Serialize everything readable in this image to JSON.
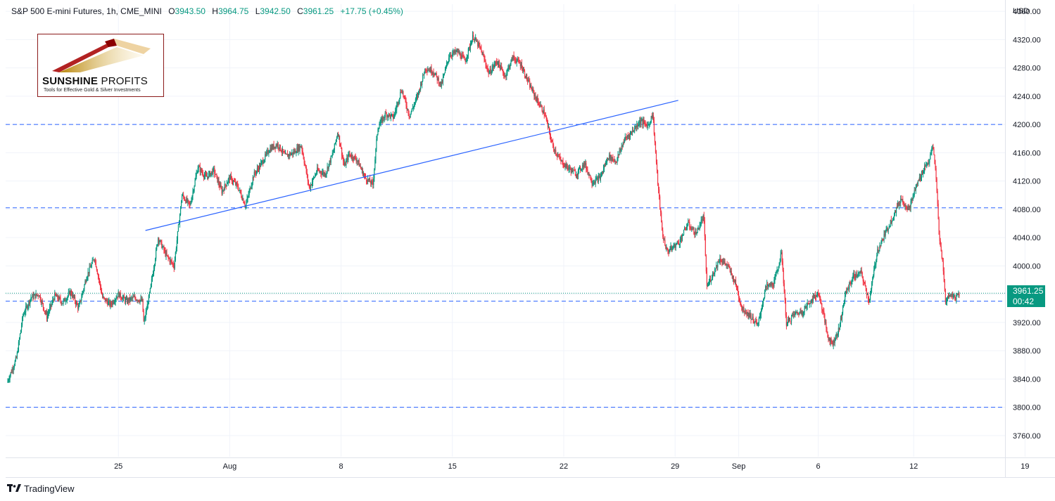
{
  "header": {
    "symbol": "S&P 500 E-mini Futures, 1h, CME_MINI",
    "open_label": "O",
    "open": "3943.50",
    "high_label": "H",
    "high": "3964.75",
    "low_label": "L",
    "low": "3942.50",
    "close_label": "C",
    "close": "3961.25",
    "change": "+17.75 (+0.45%)"
  },
  "axis": {
    "currency": "USD"
  },
  "price_badge": {
    "price": "3961.25",
    "countdown": "00:42"
  },
  "logo": {
    "name_bold": "SUNSHINE",
    "name_light": " PROFITS",
    "tagline": "Tools for Effective Gold & Silver Investments"
  },
  "footer": {
    "brand": "TradingView"
  },
  "colors": {
    "up": "#089981",
    "down": "#f23645",
    "level_line": "#2962ff",
    "trend_line": "#2962ff",
    "grid": "#f0f3fa"
  },
  "chart_data": {
    "type": "candlestick",
    "title": "S&P 500 E-mini Futures, 1h, CME_MINI",
    "ylabel": "USD",
    "ylim": [
      3730,
      4370
    ],
    "y_ticks": [
      3760,
      3800,
      3840,
      3880,
      3920,
      3960,
      4000,
      4040,
      4080,
      4120,
      4160,
      4200,
      4240,
      4280,
      4320,
      4360
    ],
    "x_ticks": [
      {
        "label": "25",
        "day": 7
      },
      {
        "label": "Aug",
        "day": 14
      },
      {
        "label": "8",
        "day": 21
      },
      {
        "label": "15",
        "day": 28
      },
      {
        "label": "22",
        "day": 35
      },
      {
        "label": "29",
        "day": 42
      },
      {
        "label": "Sep",
        "day": 46
      },
      {
        "label": "6",
        "day": 51
      },
      {
        "label": "12",
        "day": 57
      },
      {
        "label": "19",
        "day": 64
      }
    ],
    "x_unit": "trading-day index (0 = Jul 18)",
    "horizontal_levels": [
      4200,
      4082,
      3950,
      3800
    ],
    "trend_line": {
      "x1": 8.7,
      "y1": 4050,
      "x2": 42.2,
      "y2": 4234
    },
    "last_price": 3961.25,
    "price_path": [
      [
        0.0,
        3835
      ],
      [
        0.6,
        3870
      ],
      [
        1.0,
        3930
      ],
      [
        1.5,
        3955
      ],
      [
        2.0,
        3960
      ],
      [
        2.5,
        3928
      ],
      [
        3.0,
        3958
      ],
      [
        3.5,
        3948
      ],
      [
        4.0,
        3963
      ],
      [
        4.5,
        3940
      ],
      [
        5.0,
        3985
      ],
      [
        5.5,
        4012
      ],
      [
        6.0,
        3955
      ],
      [
        6.5,
        3945
      ],
      [
        7.0,
        3960
      ],
      [
        7.5,
        3950
      ],
      [
        8.0,
        3955
      ],
      [
        8.5,
        3950
      ],
      [
        8.6,
        3918
      ],
      [
        9.0,
        3965
      ],
      [
        9.5,
        4040
      ],
      [
        10.0,
        4015
      ],
      [
        10.5,
        4000
      ],
      [
        11.0,
        4100
      ],
      [
        11.5,
        4085
      ],
      [
        12.0,
        4140
      ],
      [
        12.5,
        4125
      ],
      [
        13.0,
        4135
      ],
      [
        13.5,
        4105
      ],
      [
        14.0,
        4125
      ],
      [
        14.5,
        4112
      ],
      [
        15.0,
        4085
      ],
      [
        15.5,
        4128
      ],
      [
        16.0,
        4145
      ],
      [
        16.5,
        4165
      ],
      [
        17.0,
        4172
      ],
      [
        17.5,
        4155
      ],
      [
        18.0,
        4160
      ],
      [
        18.5,
        4170
      ],
      [
        19.0,
        4110
      ],
      [
        19.5,
        4135
      ],
      [
        20.0,
        4130
      ],
      [
        20.5,
        4160
      ],
      [
        20.8,
        4190
      ],
      [
        21.2,
        4140
      ],
      [
        21.5,
        4158
      ],
      [
        22.0,
        4150
      ],
      [
        22.5,
        4125
      ],
      [
        23.0,
        4115
      ],
      [
        23.3,
        4195
      ],
      [
        23.8,
        4215
      ],
      [
        24.3,
        4210
      ],
      [
        24.8,
        4250
      ],
      [
        25.3,
        4212
      ],
      [
        25.8,
        4240
      ],
      [
        26.3,
        4280
      ],
      [
        26.8,
        4275
      ],
      [
        27.3,
        4255
      ],
      [
        27.8,
        4298
      ],
      [
        28.3,
        4303
      ],
      [
        28.8,
        4290
      ],
      [
        29.3,
        4325
      ],
      [
        29.8,
        4305
      ],
      [
        30.3,
        4272
      ],
      [
        30.8,
        4290
      ],
      [
        31.3,
        4268
      ],
      [
        31.8,
        4295
      ],
      [
        32.3,
        4285
      ],
      [
        32.8,
        4258
      ],
      [
        33.3,
        4235
      ],
      [
        33.8,
        4215
      ],
      [
        34.3,
        4170
      ],
      [
        34.8,
        4148
      ],
      [
        35.3,
        4138
      ],
      [
        35.8,
        4130
      ],
      [
        36.3,
        4145
      ],
      [
        36.8,
        4118
      ],
      [
        37.3,
        4125
      ],
      [
        37.8,
        4155
      ],
      [
        38.3,
        4148
      ],
      [
        38.8,
        4178
      ],
      [
        39.3,
        4190
      ],
      [
        39.8,
        4205
      ],
      [
        40.3,
        4198
      ],
      [
        40.6,
        4215
      ],
      [
        40.9,
        4120
      ],
      [
        41.2,
        4045
      ],
      [
        41.5,
        4020
      ],
      [
        41.8,
        4025
      ],
      [
        42.3,
        4035
      ],
      [
        42.8,
        4060
      ],
      [
        43.3,
        4045
      ],
      [
        43.8,
        4070
      ],
      [
        44.0,
        3970
      ],
      [
        44.3,
        3985
      ],
      [
        44.8,
        4010
      ],
      [
        45.3,
        4000
      ],
      [
        45.8,
        3975
      ],
      [
        46.2,
        3940
      ],
      [
        46.7,
        3930
      ],
      [
        47.2,
        3915
      ],
      [
        47.7,
        3970
      ],
      [
        48.2,
        3975
      ],
      [
        48.7,
        4018
      ],
      [
        49.0,
        3918
      ],
      [
        49.5,
        3932
      ],
      [
        50.0,
        3935
      ],
      [
        50.5,
        3950
      ],
      [
        51.0,
        3962
      ],
      [
        51.3,
        3935
      ],
      [
        51.6,
        3900
      ],
      [
        51.9,
        3890
      ],
      [
        52.3,
        3910
      ],
      [
        52.7,
        3960
      ],
      [
        53.2,
        3985
      ],
      [
        53.7,
        3990
      ],
      [
        54.2,
        3950
      ],
      [
        54.7,
        4020
      ],
      [
        55.2,
        4045
      ],
      [
        55.7,
        4070
      ],
      [
        56.2,
        4095
      ],
      [
        56.7,
        4080
      ],
      [
        57.2,
        4115
      ],
      [
        57.7,
        4140
      ],
      [
        58.0,
        4150
      ],
      [
        58.2,
        4170
      ],
      [
        58.4,
        4130
      ],
      [
        58.6,
        4040
      ],
      [
        58.8,
        4010
      ],
      [
        59.0,
        3950
      ],
      [
        59.3,
        3960
      ],
      [
        59.6,
        3955
      ],
      [
        59.9,
        3962
      ]
    ]
  }
}
